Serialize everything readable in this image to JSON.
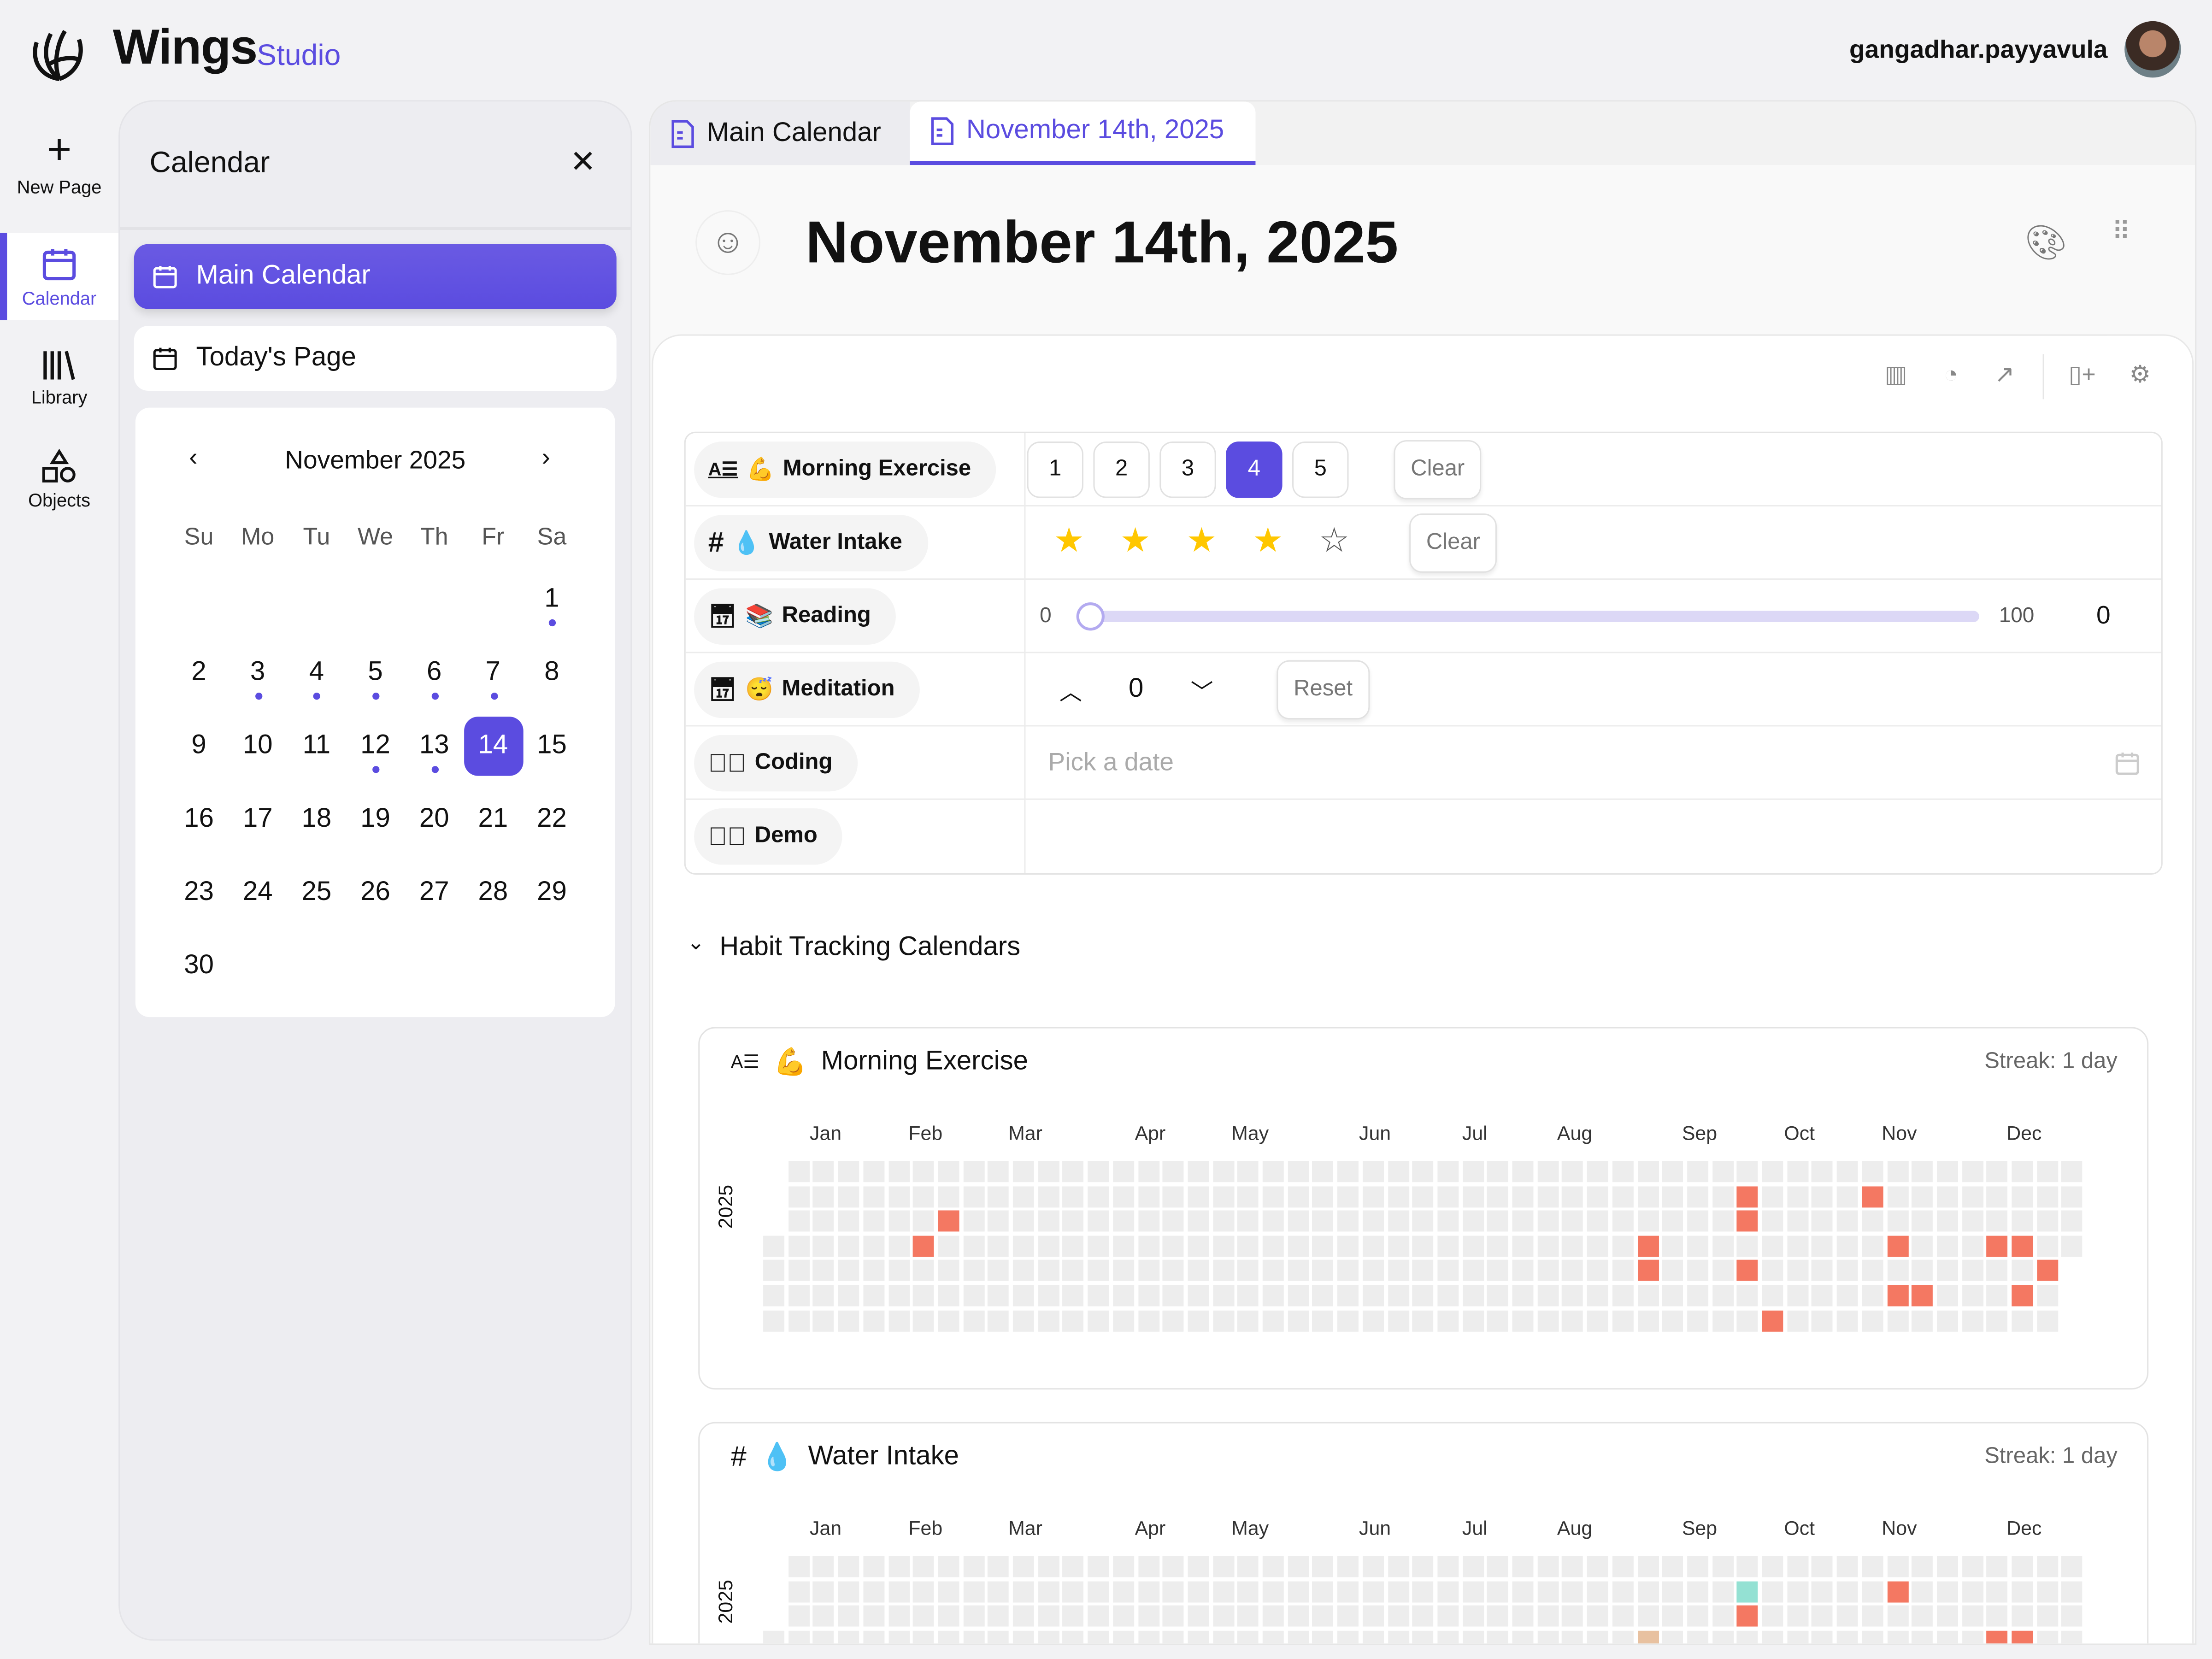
{
  "brand": {
    "name": "Wings",
    "sub": "Studio"
  },
  "user": {
    "name": "gangadhar.payyavula"
  },
  "rail": [
    {
      "label": "New Page",
      "icon": "plus-icon"
    },
    {
      "label": "Calendar",
      "icon": "calendar-icon",
      "active": true
    },
    {
      "label": "Library",
      "icon": "library-icon"
    },
    {
      "label": "Objects",
      "icon": "shapes-icon"
    }
  ],
  "panel": {
    "title": "Calendar",
    "main_calendar": "Main Calendar",
    "todays_page": "Today's Page",
    "month": "November 2025",
    "weekdays": [
      "Su",
      "Mo",
      "Tu",
      "We",
      "Th",
      "Fr",
      "Sa"
    ],
    "first_weekday": 6,
    "days_in_month": 30,
    "selected_day": 14,
    "days_with_entries": [
      1,
      3,
      4,
      5,
      6,
      7,
      12,
      13
    ]
  },
  "tabs": [
    {
      "label": "Main Calendar"
    },
    {
      "label": "November 14th, 2025",
      "active": true
    }
  ],
  "page": {
    "title": "November 14th, 2025"
  },
  "properties": {
    "morning_exercise": {
      "label": "Morning Exercise",
      "emoji": "💪",
      "options": [
        "1",
        "2",
        "3",
        "4",
        "5"
      ],
      "selected": "4",
      "clear": "Clear"
    },
    "water_intake": {
      "label": "Water Intake",
      "emoji": "💧",
      "rating": 4,
      "max": 5,
      "clear": "Clear"
    },
    "reading": {
      "label": "Reading",
      "emoji": "📚",
      "min": "0",
      "max": "100",
      "value": "0"
    },
    "meditation": {
      "label": "Meditation",
      "emoji": "😴",
      "value": "0",
      "reset": "Reset"
    },
    "coding": {
      "label": "Coding",
      "placeholder": "Pick a date"
    },
    "demo": {
      "label": "Demo"
    }
  },
  "habits": {
    "section_title": "Habit Tracking Calendars"
  },
  "colors": {
    "accent": "#5b4ce0",
    "done": "#f47862",
    "partial_teal": "#94e1d3",
    "partial_tan": "#e8c1a0",
    "empty": "#ededed"
  },
  "chart_data": [
    {
      "type": "heatmap",
      "title": "Morning Exercise",
      "emoji": "💪",
      "streak": "Streak: 1 day",
      "year": "2025",
      "months": [
        "Jan",
        "Feb",
        "Mar",
        "Apr",
        "May",
        "Jun",
        "Jul",
        "Aug",
        "Sep",
        "Oct",
        "Nov",
        "Dec"
      ],
      "rows": "weekday Sun–Sat",
      "columns": "week",
      "cells": [
        {
          "date": "2025-02-12",
          "level": "done"
        },
        {
          "date": "2025-02-18",
          "level": "done"
        },
        {
          "date": "2025-09-03",
          "level": "done"
        },
        {
          "date": "2025-09-04",
          "level": "done"
        },
        {
          "date": "2025-09-29",
          "level": "done"
        },
        {
          "date": "2025-09-30",
          "level": "done"
        },
        {
          "date": "2025-10-02",
          "level": "done"
        },
        {
          "date": "2025-10-11",
          "level": "done"
        },
        {
          "date": "2025-11-03",
          "level": "done"
        },
        {
          "date": "2025-11-12",
          "level": "done"
        },
        {
          "date": "2025-11-14",
          "level": "done"
        },
        {
          "date": "2025-11-21",
          "level": "done"
        },
        {
          "date": "2025-12-10",
          "level": "done"
        },
        {
          "date": "2025-12-17",
          "level": "done"
        },
        {
          "date": "2025-12-19",
          "level": "done"
        },
        {
          "date": "2025-12-25",
          "level": "done"
        }
      ]
    },
    {
      "type": "heatmap",
      "title": "Water Intake",
      "emoji": "💧",
      "streak": "Streak: 1 day",
      "year": "2025",
      "months": [
        "Jan",
        "Feb",
        "Mar",
        "Apr",
        "May",
        "Jun",
        "Jul",
        "Aug",
        "Sep",
        "Oct",
        "Nov",
        "Dec"
      ],
      "rows": "weekday Sun–Sat",
      "columns": "week",
      "cells": [
        {
          "date": "2025-09-03",
          "level": "partial_tan"
        },
        {
          "date": "2025-09-29",
          "level": "partial_teal"
        },
        {
          "date": "2025-09-30",
          "level": "done"
        },
        {
          "date": "2025-11-10",
          "level": "done"
        },
        {
          "date": "2025-12-10",
          "level": "done"
        },
        {
          "date": "2025-12-17",
          "level": "done"
        }
      ]
    }
  ]
}
